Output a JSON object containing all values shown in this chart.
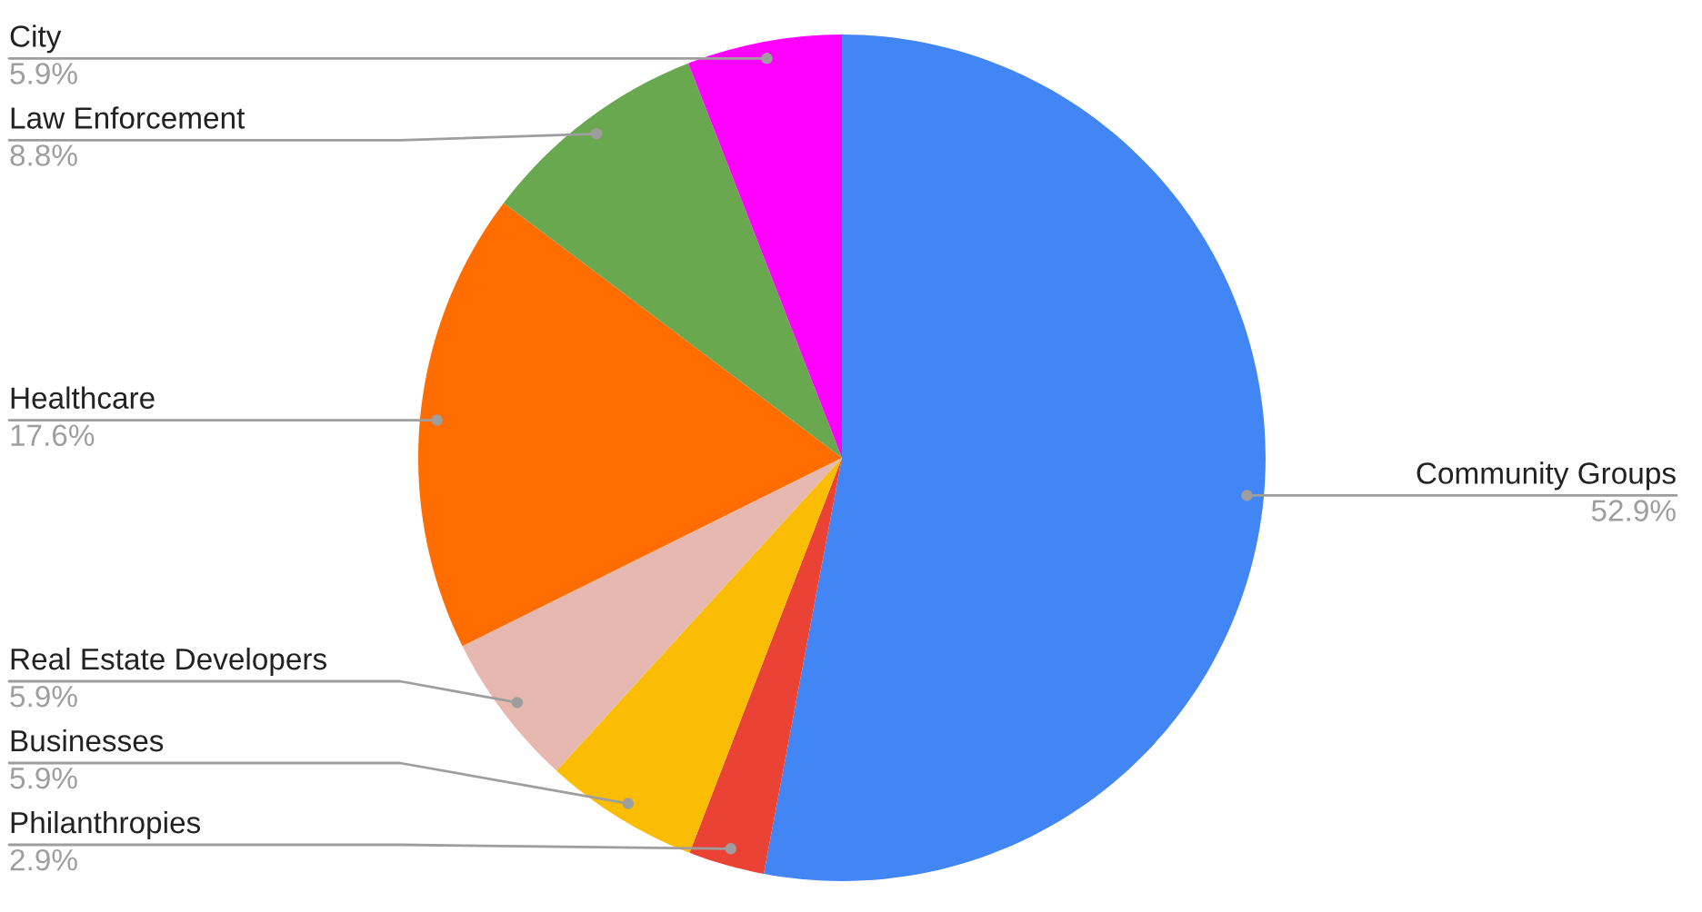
{
  "chart_data": {
    "type": "pie",
    "categories": [
      "Community Groups",
      "Philanthropies",
      "Businesses",
      "Real Estate Developers",
      "Healthcare",
      "Law Enforcement",
      "City"
    ],
    "values": [
      52.9,
      2.9,
      5.9,
      5.9,
      17.6,
      8.8,
      5.9
    ],
    "colors": [
      "#4285f4",
      "#ea4335",
      "#fbbc04",
      "#e6b8af",
      "#ff6d01",
      "#6aa84f",
      "#ff00ff"
    ],
    "value_labels": [
      "52.9%",
      "2.9%",
      "5.9%",
      "5.9%",
      "17.6%",
      "8.8%",
      "5.9%"
    ]
  }
}
